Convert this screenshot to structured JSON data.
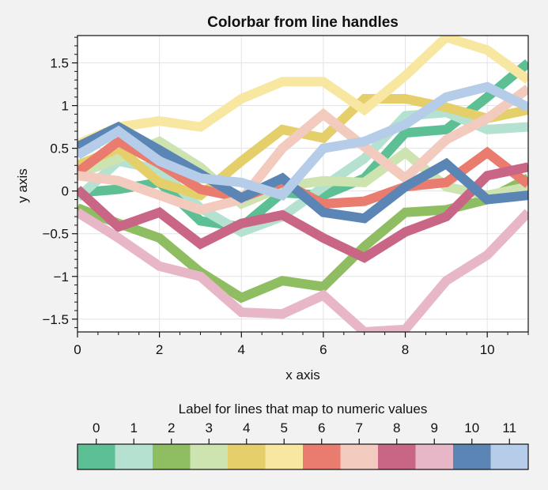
{
  "chart_data": {
    "type": "line",
    "title": "Colorbar from line handles",
    "xlabel": "x axis",
    "ylabel": "y axis",
    "xlim": [
      0,
      11
    ],
    "ylim": [
      -1.65,
      1.82
    ],
    "grid": true,
    "x_ticks": [
      0,
      2,
      4,
      6,
      8,
      10
    ],
    "x_tick_labels": [
      "0",
      "2",
      "4",
      "6",
      "8",
      "10"
    ],
    "y_ticks": [
      -1.5,
      -1,
      -0.5,
      0,
      0.5,
      1,
      1.5
    ],
    "y_tick_labels": [
      "−1.5",
      "−1",
      "−0.5",
      "0",
      "0.5",
      "1",
      "1.5"
    ],
    "x": [
      0,
      1,
      2,
      3,
      4,
      5,
      6,
      7,
      8,
      9,
      10,
      11
    ],
    "series": [
      {
        "color": "#5dc095",
        "values": [
          -0.02,
          0.02,
          0.1,
          -0.35,
          -0.42,
          -0.02,
          -0.05,
          0.15,
          0.68,
          0.72,
          1.1,
          1.5
        ]
      },
      {
        "color": "#b5e2d0",
        "values": [
          -0.08,
          0.35,
          0.25,
          -0.2,
          -0.48,
          -0.3,
          0.05,
          0.38,
          0.88,
          0.92,
          0.72,
          0.75
        ]
      },
      {
        "color": "#8fbd62",
        "values": [
          -0.2,
          -0.38,
          -0.55,
          -0.95,
          -1.25,
          -1.05,
          -1.12,
          -0.65,
          -0.25,
          -0.22,
          -0.1,
          0.15
        ]
      },
      {
        "color": "#cde4b0",
        "values": [
          0.2,
          0.38,
          0.58,
          0.28,
          -0.15,
          0.05,
          0.12,
          0.1,
          0.45,
          0.05,
          -0.05,
          0.05
        ]
      },
      {
        "color": "#e5cf6a",
        "values": [
          0.3,
          0.5,
          0.1,
          -0.05,
          0.35,
          0.72,
          0.62,
          1.08,
          1.08,
          0.98,
          0.85,
          0.95
        ]
      },
      {
        "color": "#f8e7a0",
        "values": [
          0.55,
          0.75,
          0.82,
          0.75,
          1.08,
          1.28,
          1.28,
          0.95,
          1.35,
          1.8,
          1.65,
          1.3
        ]
      },
      {
        "color": "#e97b6f",
        "values": [
          0.22,
          0.58,
          0.32,
          0.02,
          -0.08,
          0.1,
          -0.15,
          -0.12,
          0.05,
          0.1,
          0.45,
          0.08
        ]
      },
      {
        "color": "#f3cbbe",
        "values": [
          0.18,
          0.12,
          -0.05,
          -0.22,
          -0.1,
          0.5,
          0.9,
          0.52,
          0.15,
          0.6,
          0.85,
          1.2
        ]
      },
      {
        "color": "#c96585",
        "values": [
          0.02,
          -0.42,
          -0.25,
          -0.62,
          -0.38,
          -0.28,
          -0.55,
          -0.78,
          -0.48,
          -0.3,
          0.18,
          0.28
        ]
      },
      {
        "color": "#e7b7c8",
        "values": [
          -0.25,
          -0.55,
          -0.88,
          -1.0,
          -1.42,
          -1.44,
          -1.22,
          -1.65,
          -1.62,
          -1.05,
          -0.75,
          -0.25
        ]
      },
      {
        "color": "#5a85b5",
        "values": [
          0.52,
          0.75,
          0.48,
          0.2,
          -0.08,
          0.15,
          -0.25,
          -0.32,
          0.05,
          0.32,
          -0.1,
          -0.05
        ]
      },
      {
        "color": "#b5cde8",
        "values": [
          0.42,
          0.7,
          0.35,
          0.15,
          0.1,
          -0.05,
          0.5,
          0.58,
          0.78,
          1.1,
          1.22,
          0.98
        ]
      }
    ],
    "colorbar": {
      "label": "Label for lines that map to numeric values",
      "placement": "bottom",
      "tick_labels": [
        "0",
        "1",
        "2",
        "3",
        "4",
        "5",
        "6",
        "7",
        "8",
        "9",
        "10",
        "11"
      ]
    }
  }
}
